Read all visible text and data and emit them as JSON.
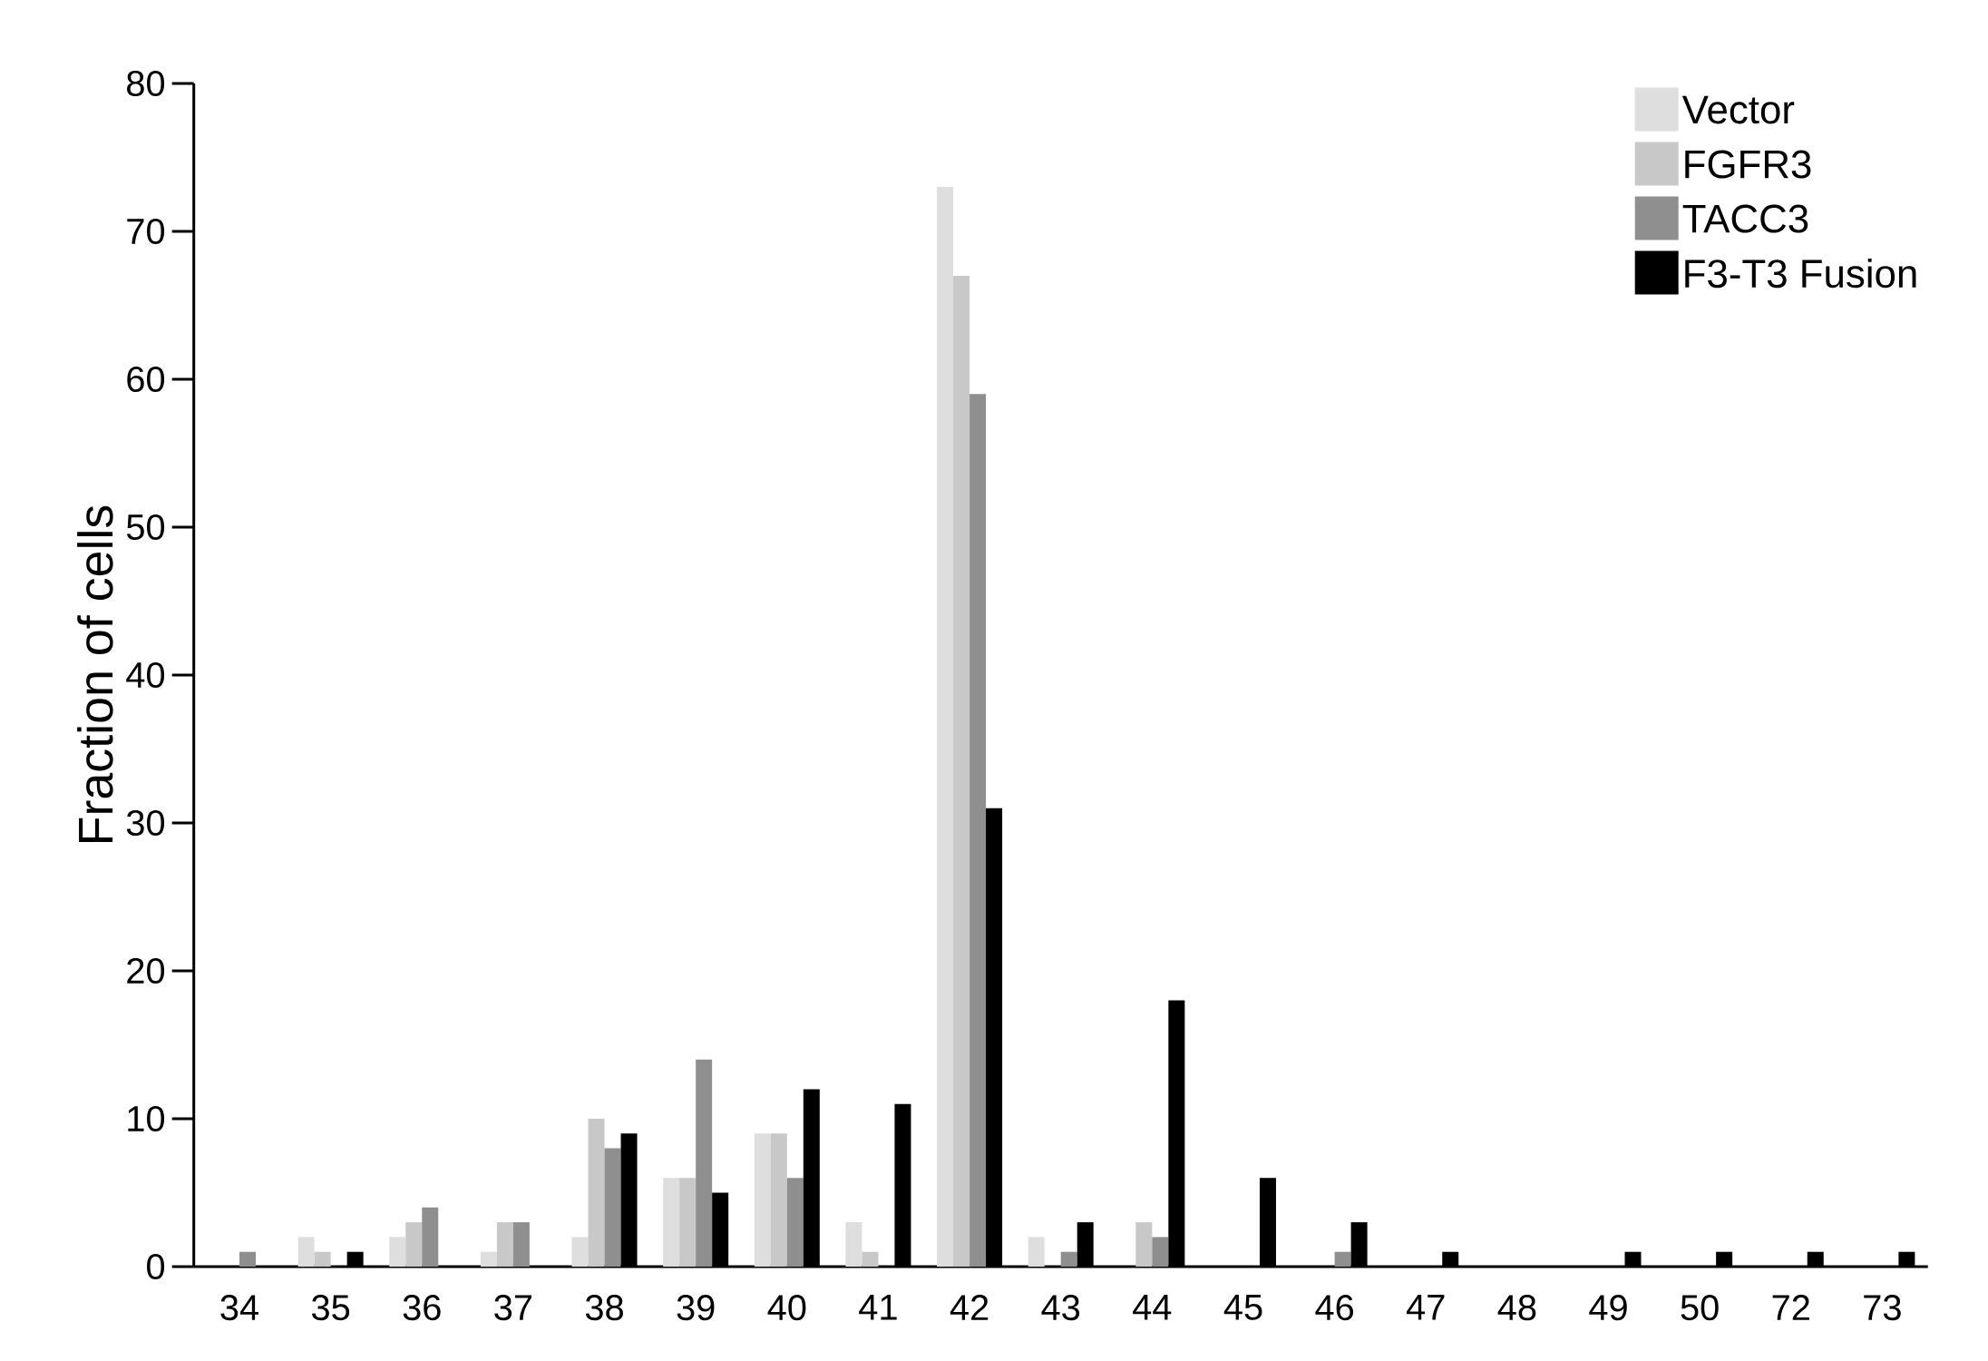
{
  "chart_data": {
    "type": "bar",
    "ylabel": "Fraction of cells",
    "categories": [
      "34",
      "35",
      "36",
      "37",
      "38",
      "39",
      "40",
      "41",
      "42",
      "43",
      "44",
      "45",
      "46",
      "47",
      "48",
      "49",
      "50",
      "72",
      "73"
    ],
    "series": [
      {
        "name": "Vector",
        "color": "#dedede",
        "values": [
          0,
          2,
          2,
          1,
          2,
          6,
          9,
          3,
          73,
          2,
          0,
          0,
          0,
          0,
          0,
          0,
          0,
          0,
          0
        ]
      },
      {
        "name": "FGFR3",
        "color": "#c8c8c8",
        "values": [
          0,
          1,
          3,
          3,
          10,
          6,
          9,
          1,
          67,
          0,
          3,
          0,
          0,
          0,
          0,
          0,
          0,
          0,
          0
        ]
      },
      {
        "name": "TACC3",
        "color": "#8f8f8f",
        "values": [
          1,
          0,
          4,
          3,
          8,
          14,
          6,
          0,
          59,
          1,
          2,
          0,
          1,
          0,
          0,
          0,
          0,
          0,
          0
        ]
      },
      {
        "name": "F3-T3 Fusion",
        "color": "#000000",
        "values": [
          0,
          1,
          0,
          0,
          9,
          5,
          12,
          11,
          31,
          3,
          18,
          6,
          3,
          1,
          0,
          1,
          1,
          1,
          1
        ]
      }
    ],
    "ylim": [
      0,
      80
    ],
    "yticks": [
      0,
      10,
      20,
      30,
      40,
      50,
      60,
      70,
      80
    ],
    "legend": "top right"
  }
}
